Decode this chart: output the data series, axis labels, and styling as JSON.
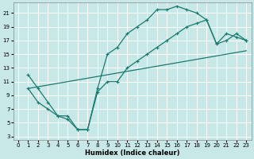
{
  "xlabel": "Humidex (Indice chaleur)",
  "background_color": "#c8e8e8",
  "grid_color": "#ffffff",
  "line_color": "#1a7a6e",
  "xlim": [
    -0.5,
    23.5
  ],
  "ylim": [
    2.5,
    22.5
  ],
  "xticks": [
    0,
    1,
    2,
    3,
    4,
    5,
    6,
    7,
    8,
    9,
    10,
    11,
    12,
    13,
    14,
    15,
    16,
    17,
    18,
    19,
    20,
    21,
    22,
    23
  ],
  "yticks": [
    3,
    5,
    7,
    9,
    11,
    13,
    15,
    17,
    19,
    21
  ],
  "curve1_x": [
    1,
    2,
    3,
    4,
    5,
    6,
    7,
    8,
    9,
    10,
    11,
    12,
    13,
    14,
    15,
    16,
    17,
    18,
    19,
    20,
    21,
    22,
    23
  ],
  "curve1_y": [
    12,
    10,
    8,
    6,
    6,
    4,
    4,
    10,
    15,
    16,
    18,
    19,
    20,
    21.5,
    21.5,
    22,
    21.5,
    21,
    20,
    16.5,
    18,
    17.5,
    17
  ],
  "curve2_x": [
    1,
    2,
    3,
    4,
    5,
    6,
    7,
    8,
    9,
    10,
    11,
    12,
    13,
    14,
    15,
    16,
    17,
    18,
    19,
    20,
    21,
    22,
    23
  ],
  "curve2_y": [
    10,
    8,
    7,
    6,
    5.5,
    4,
    4,
    9.5,
    11,
    11,
    13,
    14,
    15,
    16,
    17,
    18,
    19,
    19.5,
    20,
    16.5,
    17,
    18,
    17
  ],
  "curve3_x": [
    1,
    23
  ],
  "curve3_y": [
    10,
    15.5
  ]
}
